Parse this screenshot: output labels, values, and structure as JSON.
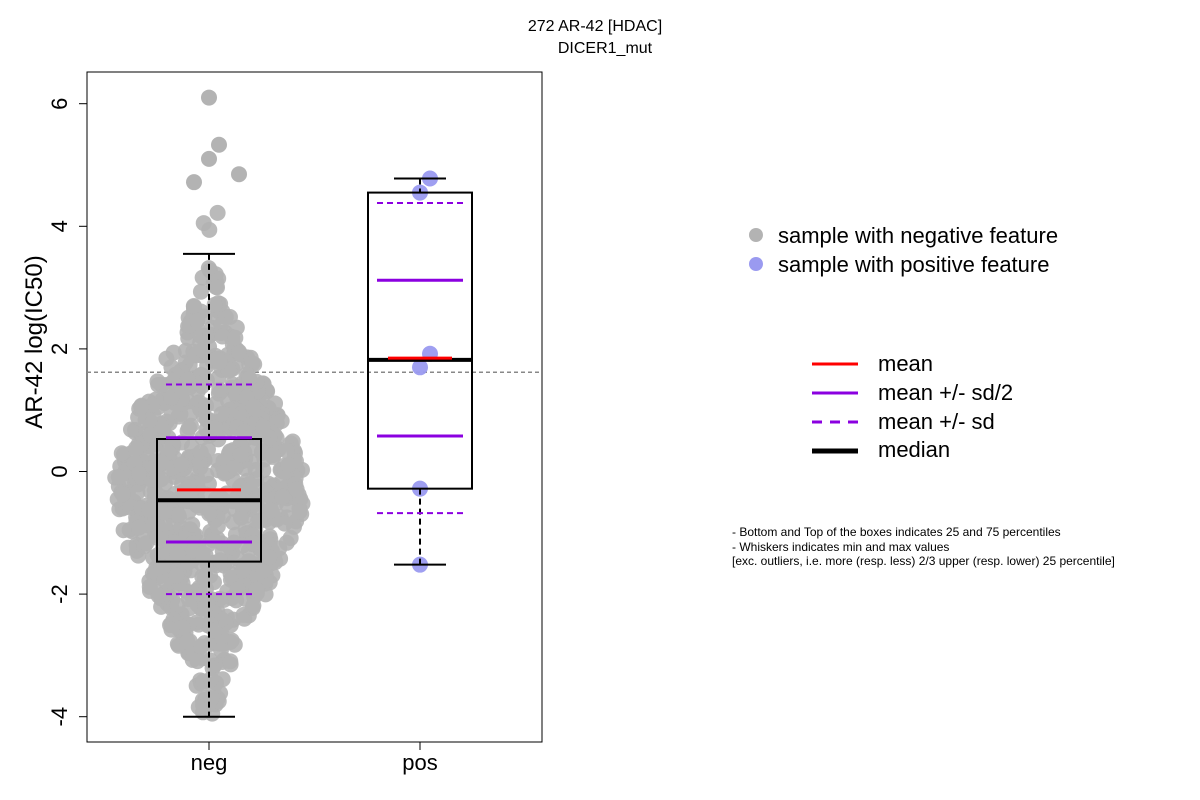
{
  "title": {
    "line1": "272 AR-42 [HDAC]",
    "line2": "DICER1_mut"
  },
  "legend_points": [
    {
      "label": "sample with negative feature",
      "color": "#b3b3b3"
    },
    {
      "label": "sample with positive feature",
      "color": "#9a9af0"
    }
  ],
  "legend_lines": [
    {
      "label": "mean",
      "color": "#ff0000",
      "style": "solid"
    },
    {
      "label": "mean +/- sd/2",
      "color": "#8b00e0",
      "style": "solid"
    },
    {
      "label": "mean +/- sd",
      "color": "#8b00e0",
      "style": "dashed"
    },
    {
      "label": "median",
      "color": "#000000",
      "style": "thick"
    }
  ],
  "notes": [
    "- Bottom and Top of the boxes indicates 25 and 75 percentiles",
    "- Whiskers indicates min and max values",
    "[exc. outliers, i.e. more (resp. less) 2/3 upper (resp. lower) 25 percentile]"
  ],
  "chart_data": {
    "type": "box",
    "title": "272 AR-42 [HDAC]\nDICER1_mut",
    "ylabel": "AR-42 log(IC50)",
    "xlabel": "",
    "categories": [
      "neg",
      "pos"
    ],
    "yticks": [
      -4,
      -2,
      0,
      2,
      4,
      6
    ],
    "ylim": [
      -4.4,
      6.5
    ],
    "reference_line": 1.62,
    "groups": [
      {
        "name": "neg",
        "point_color": "#b3b3b3",
        "box": {
          "q1": -1.47,
          "median": -0.47,
          "q3": 0.53,
          "whisker_low": -4.0,
          "whisker_high": 3.55
        },
        "mean": -0.3,
        "mean_minus_half_sd": -1.15,
        "mean_plus_half_sd": 0.55,
        "mean_minus_sd": -2.0,
        "mean_plus_sd": 1.42,
        "n_points": 880,
        "min_value": -3.95,
        "max_value": 6.1
      },
      {
        "name": "pos",
        "point_color": "#9a9af0",
        "box": {
          "q1": -0.28,
          "median": 1.82,
          "q3": 4.55,
          "whisker_low": -1.52,
          "whisker_high": 4.78
        },
        "mean": 1.85,
        "mean_minus_half_sd": 0.58,
        "mean_plus_half_sd": 3.12,
        "mean_minus_sd": -0.68,
        "mean_plus_sd": 4.38,
        "points": [
          4.78,
          4.55,
          1.92,
          1.7,
          -0.28,
          -1.52
        ]
      }
    ]
  }
}
